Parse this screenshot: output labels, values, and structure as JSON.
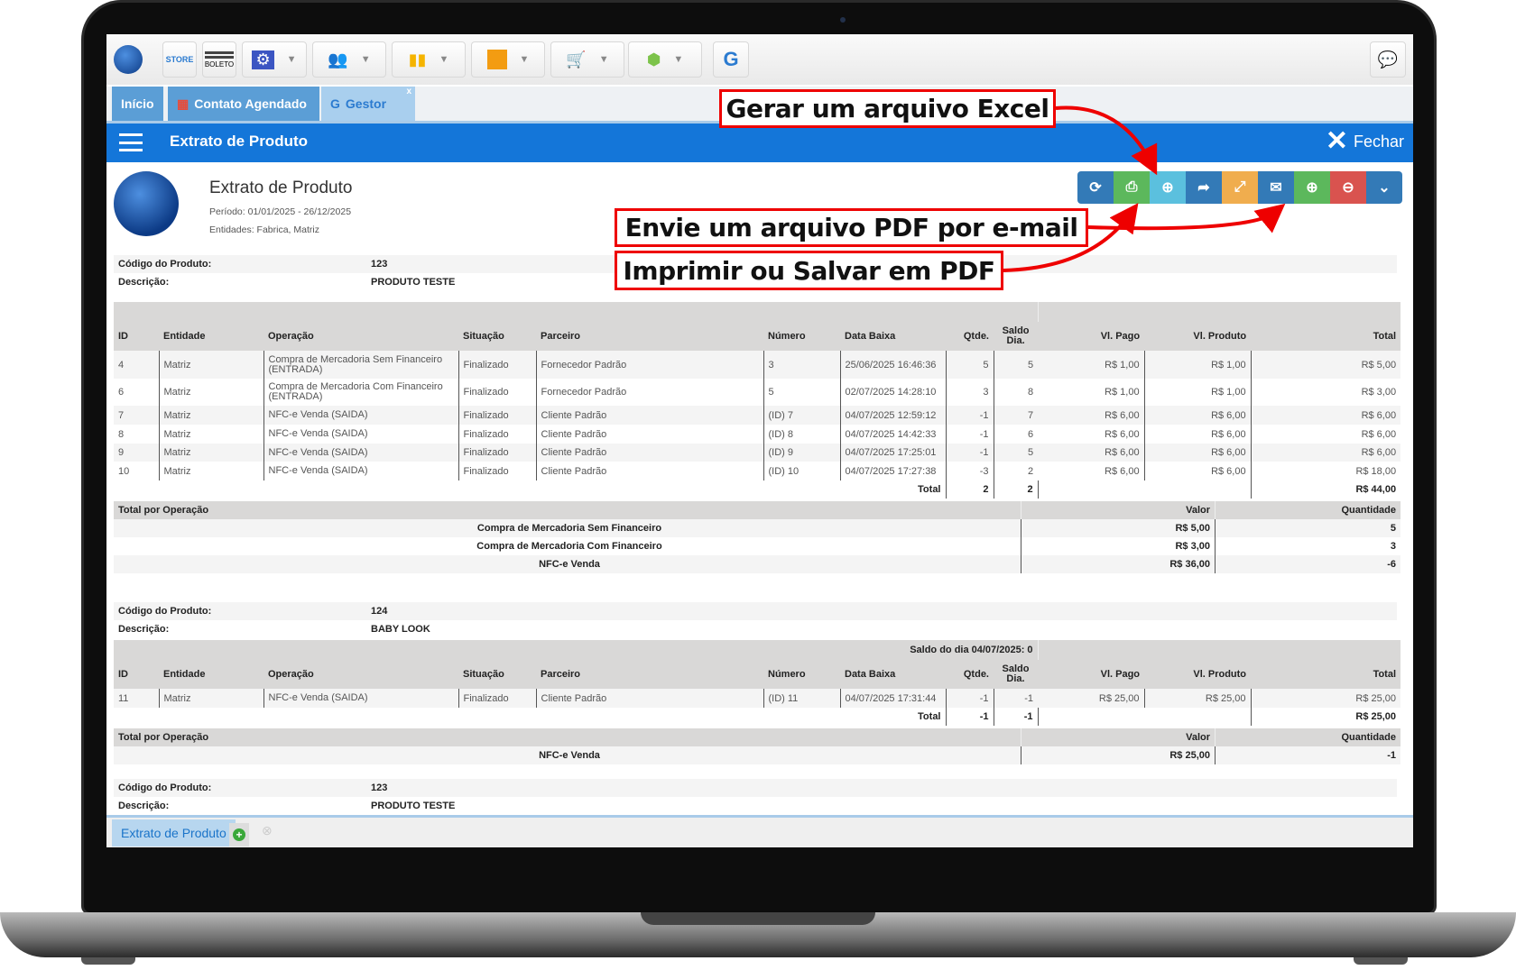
{
  "toolbar": {
    "icons": [
      "app-logo",
      "store-icon",
      "boleto-icon",
      "settings-icon",
      "users-icon",
      "chart-icon",
      "box-icon",
      "cart-icon",
      "hands-icon",
      "gestor-icon",
      "chat-icon"
    ],
    "store_label": "STORE",
    "boleto_label": "BOLETO"
  },
  "tabs": [
    {
      "label": "Início"
    },
    {
      "label": "Contato Agendado"
    },
    {
      "label": "Gestor"
    }
  ],
  "header": {
    "title": "Extrato de Produto",
    "close_label": "Fechar"
  },
  "report": {
    "title": "Extrato de Produto",
    "period": "Período: 01/01/2025 - 26/12/2025",
    "entities": "Entidades: Fabrica, Matriz"
  },
  "actions": [
    {
      "name": "refresh",
      "color": "#337ab7",
      "glyph": "⟳"
    },
    {
      "name": "print",
      "color": "#5cb85c",
      "glyph": "⎙"
    },
    {
      "name": "download",
      "color": "#5bc0de",
      "glyph": "⊕"
    },
    {
      "name": "share",
      "color": "#337ab7",
      "glyph": "➦"
    },
    {
      "name": "expand",
      "color": "#f0ad4e",
      "glyph": "⤢"
    },
    {
      "name": "email",
      "color": "#337ab7",
      "glyph": "✉"
    },
    {
      "name": "zoom-in",
      "color": "#5cb85c",
      "glyph": "⊕"
    },
    {
      "name": "zoom-out",
      "color": "#d9534f",
      "glyph": "⊖"
    },
    {
      "name": "more",
      "color": "#337ab7",
      "glyph": "⌄"
    }
  ],
  "labels": {
    "codigo": "Código do Produto:",
    "descricao": "Descrição:",
    "total": "Total",
    "tpo": "Total por Operação",
    "valor": "Valor",
    "quantidade": "Quantidade"
  },
  "columns": [
    "ID",
    "Entidade",
    "Operação",
    "Situação",
    "Parceiro",
    "Número",
    "Data Baixa",
    "Qtde.",
    "Saldo Dia.",
    "Vl. Pago",
    "Vl. Produto",
    "Total"
  ],
  "products": [
    {
      "codigo": "123",
      "descricao": "PRODUTO TESTE",
      "saldo": "",
      "rows": [
        [
          "4",
          "Matriz",
          "Compra de Mercadoria Sem Financeiro (ENTRADA)",
          "Finalizado",
          "Fornecedor Padrão",
          "3",
          "25/06/2025 16:46:36",
          "5",
          "5",
          "R$ 1,00",
          "R$ 1,00",
          "R$ 5,00"
        ],
        [
          "6",
          "Matriz",
          "Compra de Mercadoria Com Financeiro (ENTRADA)",
          "Finalizado",
          "Fornecedor Padrão",
          "5",
          "02/07/2025 14:28:10",
          "3",
          "8",
          "R$ 1,00",
          "R$ 1,00",
          "R$ 3,00"
        ],
        [
          "7",
          "Matriz",
          "NFC-e Venda (SAIDA)",
          "Finalizado",
          "Cliente Padrão",
          "(ID) 7",
          "04/07/2025 12:59:12",
          "-1",
          "7",
          "R$ 6,00",
          "R$ 6,00",
          "R$ 6,00"
        ],
        [
          "8",
          "Matriz",
          "NFC-e Venda (SAIDA)",
          "Finalizado",
          "Cliente Padrão",
          "(ID) 8",
          "04/07/2025 14:42:33",
          "-1",
          "6",
          "R$ 6,00",
          "R$ 6,00",
          "R$ 6,00"
        ],
        [
          "9",
          "Matriz",
          "NFC-e Venda (SAIDA)",
          "Finalizado",
          "Cliente Padrão",
          "(ID) 9",
          "04/07/2025 17:25:01",
          "-1",
          "5",
          "R$ 6,00",
          "R$ 6,00",
          "R$ 6,00"
        ],
        [
          "10",
          "Matriz",
          "NFC-e Venda (SAIDA)",
          "Finalizado",
          "Cliente Padrão",
          "(ID) 10",
          "04/07/2025 17:27:38",
          "-3",
          "2",
          "R$ 6,00",
          "R$ 6,00",
          "R$ 18,00"
        ]
      ],
      "total": {
        "qtde": "2",
        "saldo": "2",
        "valor": "R$ 44,00"
      },
      "ops": [
        [
          "Compra de Mercadoria Sem Financeiro",
          "R$ 5,00",
          "5"
        ],
        [
          "Compra de Mercadoria Com Financeiro",
          "R$ 3,00",
          "3"
        ],
        [
          "NFC-e Venda",
          "R$ 36,00",
          "-6"
        ]
      ]
    },
    {
      "codigo": "124",
      "descricao": "BABY LOOK",
      "saldo": "Saldo do dia 04/07/2025: 0",
      "rows": [
        [
          "11",
          "Matriz",
          "NFC-e Venda (SAIDA)",
          "Finalizado",
          "Cliente Padrão",
          "(ID) 11",
          "04/07/2025 17:31:44",
          "-1",
          "-1",
          "R$ 25,00",
          "R$ 25,00",
          "R$ 25,00"
        ]
      ],
      "total": {
        "qtde": "-1",
        "saldo": "-1",
        "valor": "R$ 25,00"
      },
      "ops": [
        [
          "NFC-e Venda",
          "R$ 25,00",
          "-1"
        ]
      ]
    },
    {
      "codigo": "123",
      "descricao": "PRODUTO TESTE"
    }
  ],
  "bottom_tab": {
    "label": "Extrato de Produto"
  },
  "callouts": {
    "excel": "Gerar um arquivo Excel",
    "pdf": "Imprimir ou Salvar em PDF",
    "email": "Envie um arquivo PDF por e-mail"
  }
}
